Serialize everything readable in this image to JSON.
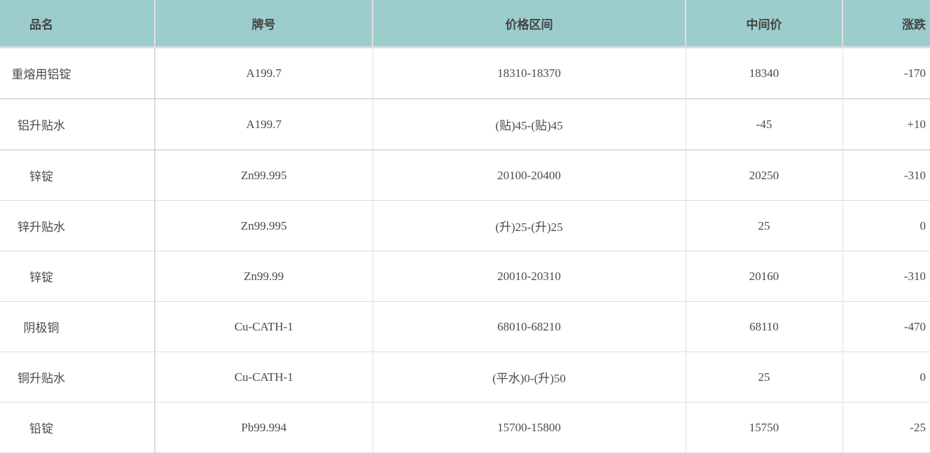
{
  "table": {
    "headers": [
      "品名",
      "牌号",
      "价格区间",
      "中间价",
      "涨跌"
    ],
    "rows": [
      [
        "重熔用铝锭",
        "A199.7",
        "18310-18370",
        "18340",
        "-170"
      ],
      [
        "铝升贴水",
        "A199.7",
        "(贴)45-(贴)45",
        "-45",
        "+10"
      ],
      [
        "锌锭",
        "Zn99.995",
        "20100-20400",
        "20250",
        "-310"
      ],
      [
        "锌升贴水",
        "Zn99.995",
        "(升)25-(升)25",
        "25",
        "0"
      ],
      [
        "锌锭",
        "Zn99.99",
        "20010-20310",
        "20160",
        "-310"
      ],
      [
        "阴极铜",
        "Cu-CATH-1",
        "68010-68210",
        "68110",
        "-470"
      ],
      [
        "铜升贴水",
        "Cu-CATH-1",
        "(平水)0-(升)50",
        "25",
        "0"
      ],
      [
        "铅锭",
        "Pb99.994",
        "15700-15800",
        "15750",
        "-25"
      ]
    ]
  },
  "colors": {
    "header_bg": "#9ccccc",
    "text": "#4a4a4a"
  }
}
